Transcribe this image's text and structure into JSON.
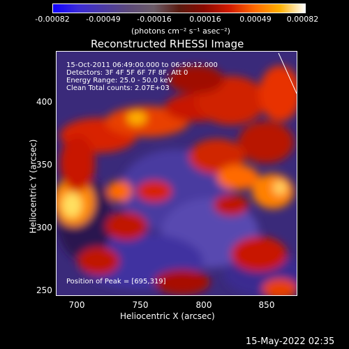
{
  "colorbar": {
    "ticks": [
      "-0.00082",
      "-0.00049",
      "-0.00016",
      "0.00016",
      "0.00049",
      "0.00082"
    ],
    "unit": "(photons cm⁻² s⁻¹ asec⁻²)"
  },
  "title": "Reconstructed RHESSI Image",
  "annotations": {
    "line1": "15-Oct-2011 06:49:00.000 to 06:50:12.000",
    "line2": "Detectors: 3F 4F 5F 6F 7F 8F, Att 0",
    "line3": "Energy Range: 25.0 - 50.0 keV",
    "line4": "Clean     Total counts: 2.07E+03",
    "peak": "Position of Peak = [695,319]"
  },
  "axes": {
    "xlabel": "Heliocentric X (arcsec)",
    "ylabel": "Heliocentric Y (arcsec)",
    "xticks": [
      "700",
      "750",
      "800",
      "850"
    ],
    "yticks": [
      "400",
      "350",
      "300",
      "250"
    ]
  },
  "footer": "15-May-2022 02:35"
}
